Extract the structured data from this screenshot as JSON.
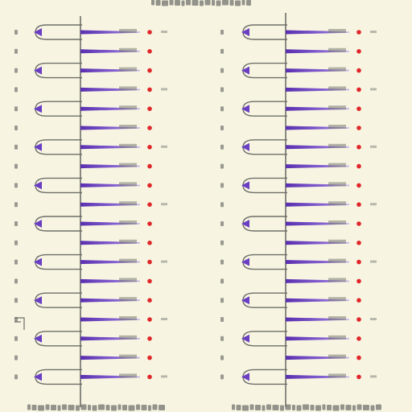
{
  "colors": {
    "background": "#f7f5e1",
    "line": "#6e6e69",
    "stem": "#5a2fb0",
    "stem_light": "#8e6cd6",
    "cap": "#6a3fc3",
    "dot": "#e0262a",
    "smudge": "#7a7a75"
  },
  "panels": [
    {
      "name": "left",
      "rows": 19,
      "bulbs": 10
    },
    {
      "name": "right",
      "rows": 19,
      "bulbs": 10
    }
  ],
  "illegible_text": {
    "header": "illegible",
    "footer": "illegible",
    "row_labels": "illegible"
  }
}
